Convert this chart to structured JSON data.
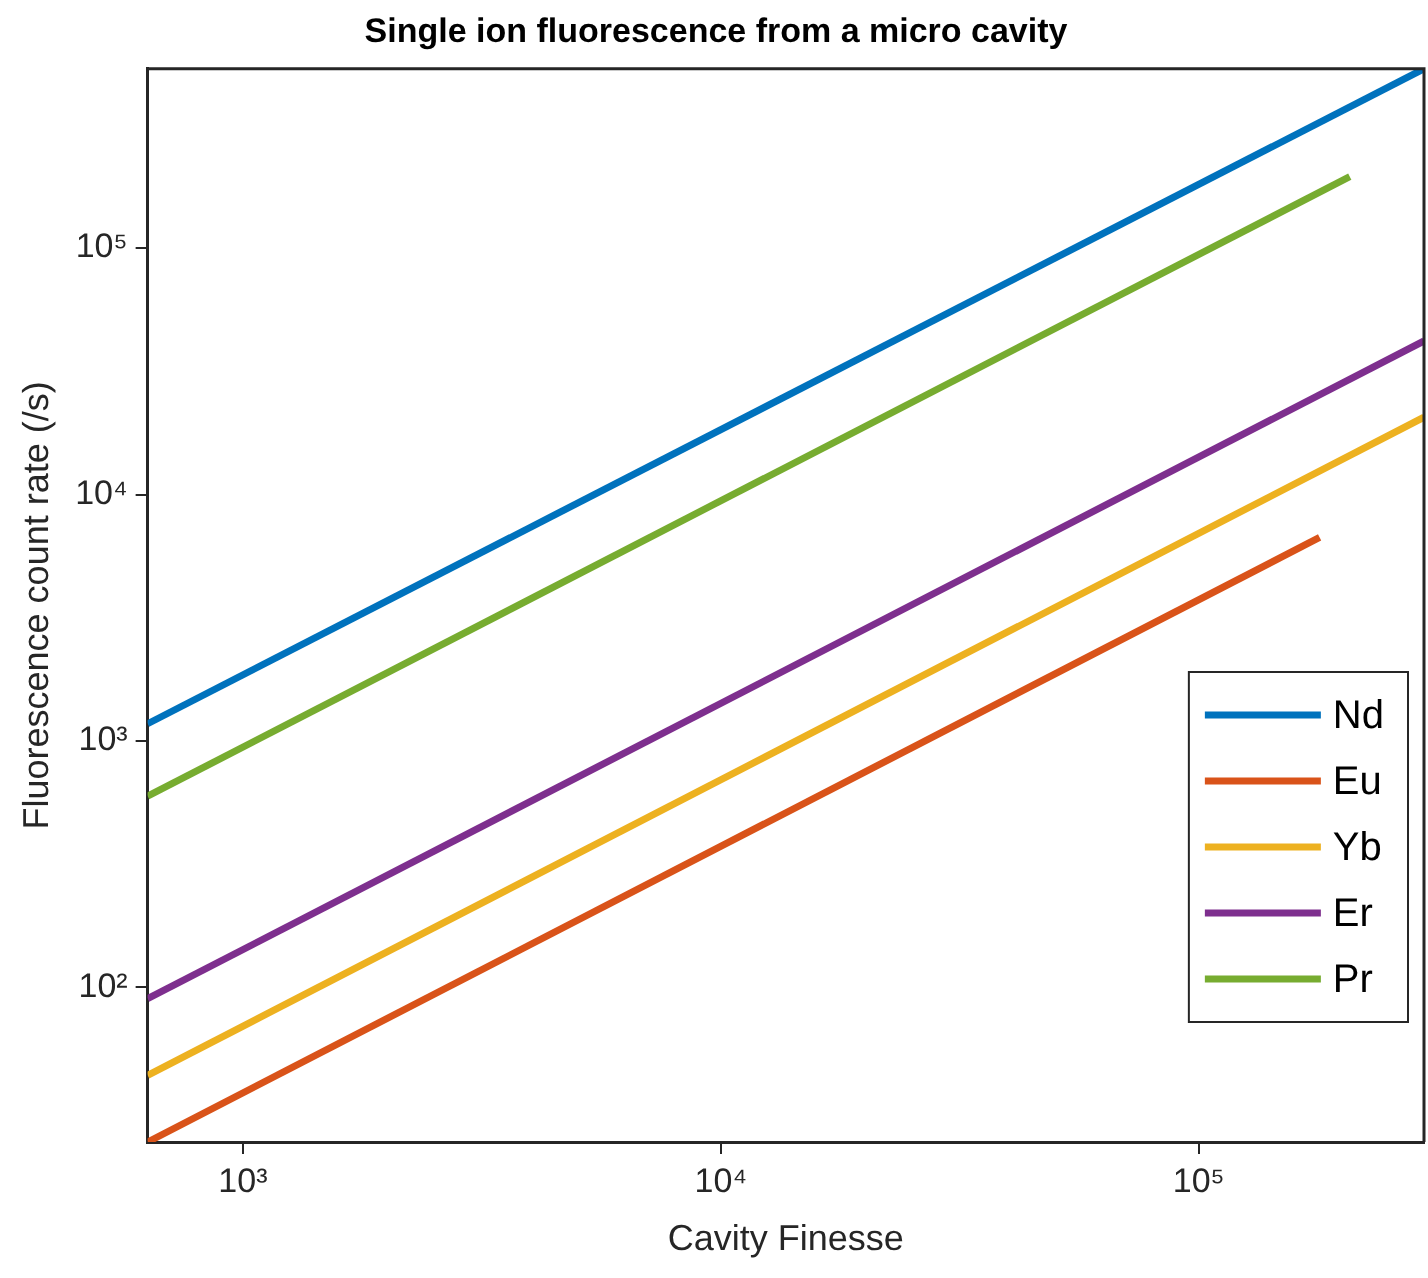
{
  "chart_data": {
    "type": "line",
    "title": "Single ion fluorescence from a micro cavity",
    "xlabel": "Cavity Finesse",
    "ylabel": "Fluorescence count rate (/s)",
    "log": "xy",
    "grid": false,
    "legend": "bottom right",
    "marker": "none",
    "line_style": "solid",
    "xlim": [
      632,
      296000
    ],
    "ylim": [
      23.6,
      534000
    ],
    "xticks": [
      {
        "value": 1000,
        "label": "10³"
      },
      {
        "value": 10000,
        "label": "10⁴"
      },
      {
        "value": 100000,
        "label": "10⁵"
      }
    ],
    "yticks": [
      {
        "value": 100,
        "label": "10²"
      },
      {
        "value": 1000,
        "label": "10³"
      },
      {
        "value": 10000,
        "label": "10⁴"
      },
      {
        "value": 100000,
        "label": "10⁵"
      }
    ],
    "series": [
      {
        "name": "Nd",
        "color": "#0072bd",
        "x": [
          632,
          296000
        ],
        "values": [
          1175,
          534000
        ]
      },
      {
        "name": "Eu",
        "color": "#d95319",
        "x": [
          632,
          179000
        ],
        "values": [
          23.6,
          6700
        ]
      },
      {
        "name": "Yb",
        "color": "#edb120",
        "x": [
          632,
          296000
        ],
        "values": [
          44,
          20600
        ]
      },
      {
        "name": "Er",
        "color": "#7e2f8e",
        "x": [
          632,
          296000
        ],
        "values": [
          90,
          42000
        ]
      },
      {
        "name": "Pr",
        "color": "#77ac30",
        "x": [
          632,
          207000
        ],
        "values": [
          597,
          195000
        ]
      }
    ]
  }
}
